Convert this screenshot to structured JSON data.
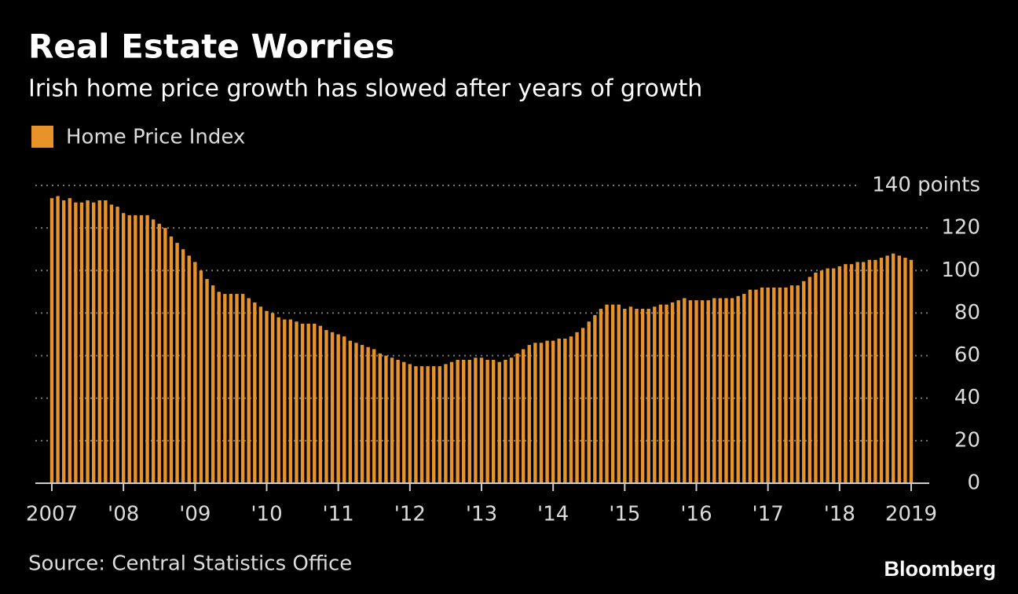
{
  "chart_data": {
    "type": "bar",
    "title": "Real Estate Worries",
    "subtitle": "Irish home price growth has slowed after years of growth",
    "source": "Source: Central Statistics Office",
    "brand": "Bloomberg",
    "series": [
      {
        "name": "Home Price Index",
        "color": "#e8922a",
        "values": [
          134,
          135,
          133,
          134,
          132,
          132,
          133,
          132,
          133,
          133,
          131,
          130,
          127,
          126,
          126,
          126,
          126,
          124,
          122,
          120,
          116,
          113,
          110,
          107,
          104,
          100,
          96,
          93,
          90,
          89,
          89,
          89,
          89,
          87,
          85,
          83,
          81,
          80,
          78,
          77,
          77,
          76,
          75,
          75,
          75,
          74,
          72,
          71,
          70,
          69,
          67,
          66,
          65,
          64,
          63,
          61,
          60,
          59,
          58,
          57,
          56,
          55,
          55,
          55,
          55,
          55,
          56,
          57,
          58,
          58,
          58,
          59,
          59,
          58,
          58,
          57,
          58,
          59,
          61,
          63,
          65,
          66,
          66,
          67,
          67,
          68,
          68,
          69,
          71,
          73,
          76,
          79,
          82,
          84,
          84,
          84,
          82,
          83,
          82,
          82,
          82,
          83,
          84,
          84,
          85,
          86,
          87,
          86,
          86,
          86,
          86,
          87,
          87,
          87,
          87,
          88,
          89,
          91,
          91,
          92,
          92,
          92,
          92,
          92,
          93,
          93,
          95,
          97,
          99,
          100,
          101,
          101,
          102,
          103,
          103,
          104,
          104,
          105,
          105,
          106,
          107,
          108,
          107,
          106,
          105
        ]
      }
    ],
    "categories": [
      "2007",
      null,
      null,
      null,
      null,
      null,
      null,
      null,
      null,
      null,
      null,
      null,
      "'08",
      null,
      null,
      null,
      null,
      null,
      null,
      null,
      null,
      null,
      null,
      null,
      "'09",
      null,
      null,
      null,
      null,
      null,
      null,
      null,
      null,
      null,
      null,
      null,
      "'10",
      null,
      null,
      null,
      null,
      null,
      null,
      null,
      null,
      null,
      null,
      null,
      "'11",
      null,
      null,
      null,
      null,
      null,
      null,
      null,
      null,
      null,
      null,
      null,
      "'12",
      null,
      null,
      null,
      null,
      null,
      null,
      null,
      null,
      null,
      null,
      null,
      "'13",
      null,
      null,
      null,
      null,
      null,
      null,
      null,
      null,
      null,
      null,
      null,
      "'14",
      null,
      null,
      null,
      null,
      null,
      null,
      null,
      null,
      null,
      null,
      null,
      "'15",
      null,
      null,
      null,
      null,
      null,
      null,
      null,
      null,
      null,
      null,
      null,
      "'16",
      null,
      null,
      null,
      null,
      null,
      null,
      null,
      null,
      null,
      null,
      null,
      "'17",
      null,
      null,
      null,
      null,
      null,
      null,
      null,
      null,
      null,
      null,
      null,
      "'18",
      null,
      null,
      null,
      null,
      null,
      null,
      null,
      null,
      null,
      null,
      null,
      "2019"
    ],
    "ylim": [
      0,
      140
    ],
    "yticks": [
      0,
      20,
      40,
      60,
      80,
      100,
      120,
      {
        "value": 140,
        "label": "140 points"
      }
    ],
    "grid": true
  }
}
